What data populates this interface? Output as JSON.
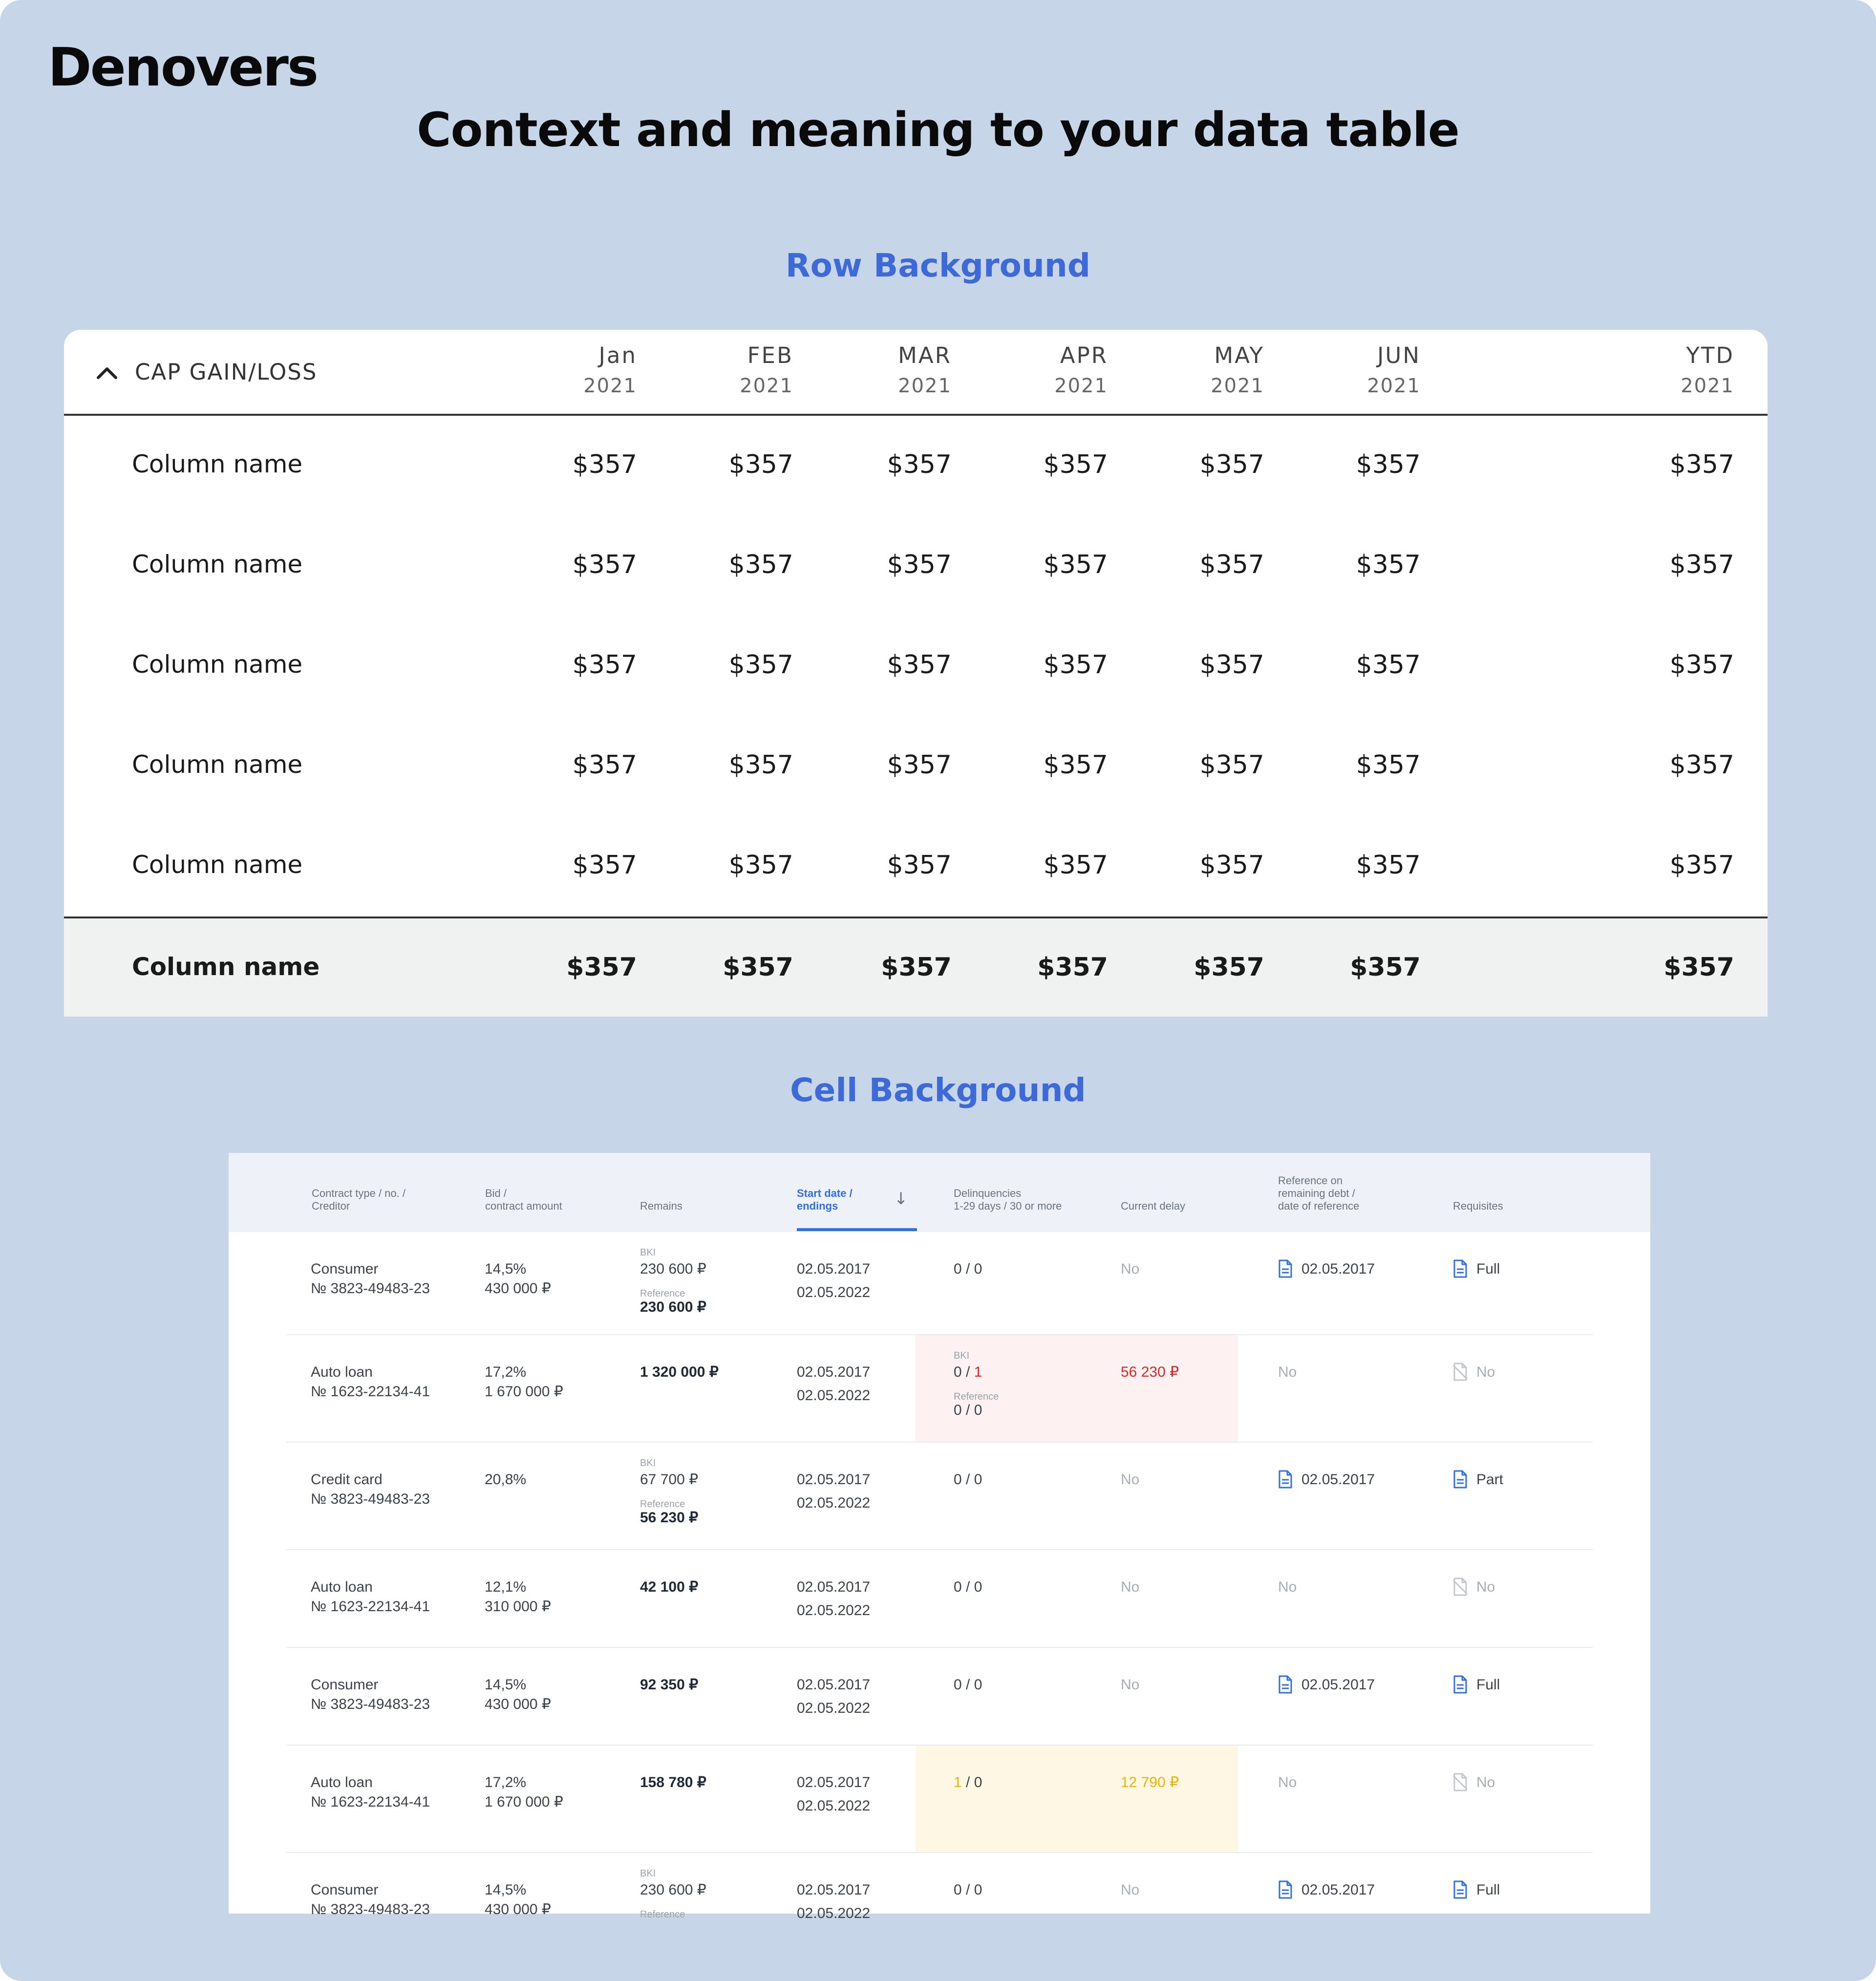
{
  "brand": "Denovers",
  "headline": "Context and meaning to your data table",
  "row_section": {
    "title": "Row Background",
    "group_label": "CAP GAIN/LOSS",
    "columns": [
      {
        "month": "Jan",
        "year": "2021"
      },
      {
        "month": "FEB",
        "year": "2021"
      },
      {
        "month": "MAR",
        "year": "2021"
      },
      {
        "month": "APR",
        "year": "2021"
      },
      {
        "month": "MAY",
        "year": "2021"
      },
      {
        "month": "JUN",
        "year": "2021"
      },
      {
        "month": "YTD",
        "year": "2021"
      }
    ],
    "rows": [
      {
        "label": "Column name",
        "values": [
          "$357",
          "$357",
          "$357",
          "$357",
          "$357",
          "$357",
          "$357"
        ]
      },
      {
        "label": "Column name",
        "values": [
          "$357",
          "$357",
          "$357",
          "$357",
          "$357",
          "$357",
          "$357"
        ]
      },
      {
        "label": "Column name",
        "values": [
          "$357",
          "$357",
          "$357",
          "$357",
          "$357",
          "$357",
          "$357"
        ]
      },
      {
        "label": "Column name",
        "values": [
          "$357",
          "$357",
          "$357",
          "$357",
          "$357",
          "$357",
          "$357"
        ]
      },
      {
        "label": "Column name",
        "values": [
          "$357",
          "$357",
          "$357",
          "$357",
          "$357",
          "$357",
          "$357"
        ]
      }
    ],
    "total": {
      "label": "Column name",
      "values": [
        "$357",
        "$357",
        "$357",
        "$357",
        "$357",
        "$357",
        "$357"
      ]
    }
  },
  "cell_section": {
    "title": "Cell Background",
    "headers": {
      "contract": [
        "Contract type / no. /",
        "Creditor"
      ],
      "bid": [
        "Bid /",
        "contract amount"
      ],
      "remains": "Remains",
      "start": [
        "Start date /",
        "endings"
      ],
      "delinq": [
        "Delinquencies",
        "1-29 days / 30 or more"
      ],
      "delay": "Current delay",
      "reference": [
        "Reference on",
        "remaining debt /",
        "date of reference"
      ],
      "requisites": "Requisites"
    },
    "labels": {
      "bki": "BKI",
      "reference": "Reference"
    },
    "rows": [
      {
        "type": "Consumer",
        "number": "№ 3823-49483-23",
        "bid": "14,5%",
        "amount": "430 000 ₽",
        "remains_bki": "230 600 ₽",
        "remains_ref": "230 600 ₽",
        "remains": "",
        "start": "02.05.2017",
        "end": "02.05.2022",
        "delinq_a": "0",
        "delinq_b": "0",
        "delinq_ref": "",
        "delay": "No",
        "reference": "02.05.2017",
        "requisites": "Full",
        "highlight": "none"
      },
      {
        "type": "Auto loan",
        "number": "№ 1623-22134-41",
        "bid": "17,2%",
        "amount": "1 670 000 ₽",
        "remains_bki": "",
        "remains_ref": "",
        "remains": "1 320 000 ₽",
        "start": "02.05.2017",
        "end": "02.05.2022",
        "delinq_a": "0",
        "delinq_b": "1",
        "delinq_ref": "0 / 0",
        "delay": "56 230 ₽",
        "reference": "No",
        "requisites": "No",
        "highlight": "red"
      },
      {
        "type": "Credit card",
        "number": "№ 3823-49483-23",
        "bid": "20,8%",
        "amount": "",
        "remains_bki": "67 700 ₽",
        "remains_ref": "56 230 ₽",
        "remains": "",
        "start": "02.05.2017",
        "end": "02.05.2022",
        "delinq_a": "0",
        "delinq_b": "0",
        "delinq_ref": "",
        "delay": "No",
        "reference": "02.05.2017",
        "requisites": "Part",
        "highlight": "none"
      },
      {
        "type": "Auto loan",
        "number": "№ 1623-22134-41",
        "bid": "12,1%",
        "amount": "310 000 ₽",
        "remains_bki": "",
        "remains_ref": "",
        "remains": "42 100 ₽",
        "start": "02.05.2017",
        "end": "02.05.2022",
        "delinq_a": "0",
        "delinq_b": "0",
        "delinq_ref": "",
        "delay": "No",
        "reference": "No",
        "requisites": "No",
        "highlight": "none"
      },
      {
        "type": "Consumer",
        "number": "№ 3823-49483-23",
        "bid": "14,5%",
        "amount": "430 000 ₽",
        "remains_bki": "",
        "remains_ref": "",
        "remains": "92 350 ₽",
        "start": "02.05.2017",
        "end": "02.05.2022",
        "delinq_a": "0",
        "delinq_b": "0",
        "delinq_ref": "",
        "delay": "No",
        "reference": "02.05.2017",
        "requisites": "Full",
        "highlight": "none"
      },
      {
        "type": "Auto loan",
        "number": "№ 1623-22134-41",
        "bid": "17,2%",
        "amount": "1 670 000 ₽",
        "remains_bki": "",
        "remains_ref": "",
        "remains": "158 780 ₽",
        "start": "02.05.2017",
        "end": "02.05.2022",
        "delinq_a": "1",
        "delinq_b": "0",
        "delinq_ref": "",
        "delay": "12 790 ₽",
        "reference": "No",
        "requisites": "No",
        "highlight": "yellow"
      },
      {
        "type": "Consumer",
        "number": "№ 3823-49483-23",
        "bid": "14,5%",
        "amount": "430 000 ₽",
        "remains_bki": "230 600 ₽",
        "remains_ref": "",
        "remains": "",
        "start": "02.05.2017",
        "end": "02.05.2022",
        "delinq_a": "0",
        "delinq_b": "0",
        "delinq_ref": "",
        "delay": "No",
        "reference": "02.05.2017",
        "requisites": "Full",
        "highlight": "none"
      }
    ]
  },
  "colors": {
    "accent": "#3d6ad6",
    "page_bg": "#c6d6e8",
    "danger": "#d62a2a",
    "warning": "#eab308",
    "link": "#2f6fe0"
  },
  "icons": [
    "chevron-up-icon",
    "document-icon",
    "document-off-icon",
    "arrow-down-icon"
  ]
}
